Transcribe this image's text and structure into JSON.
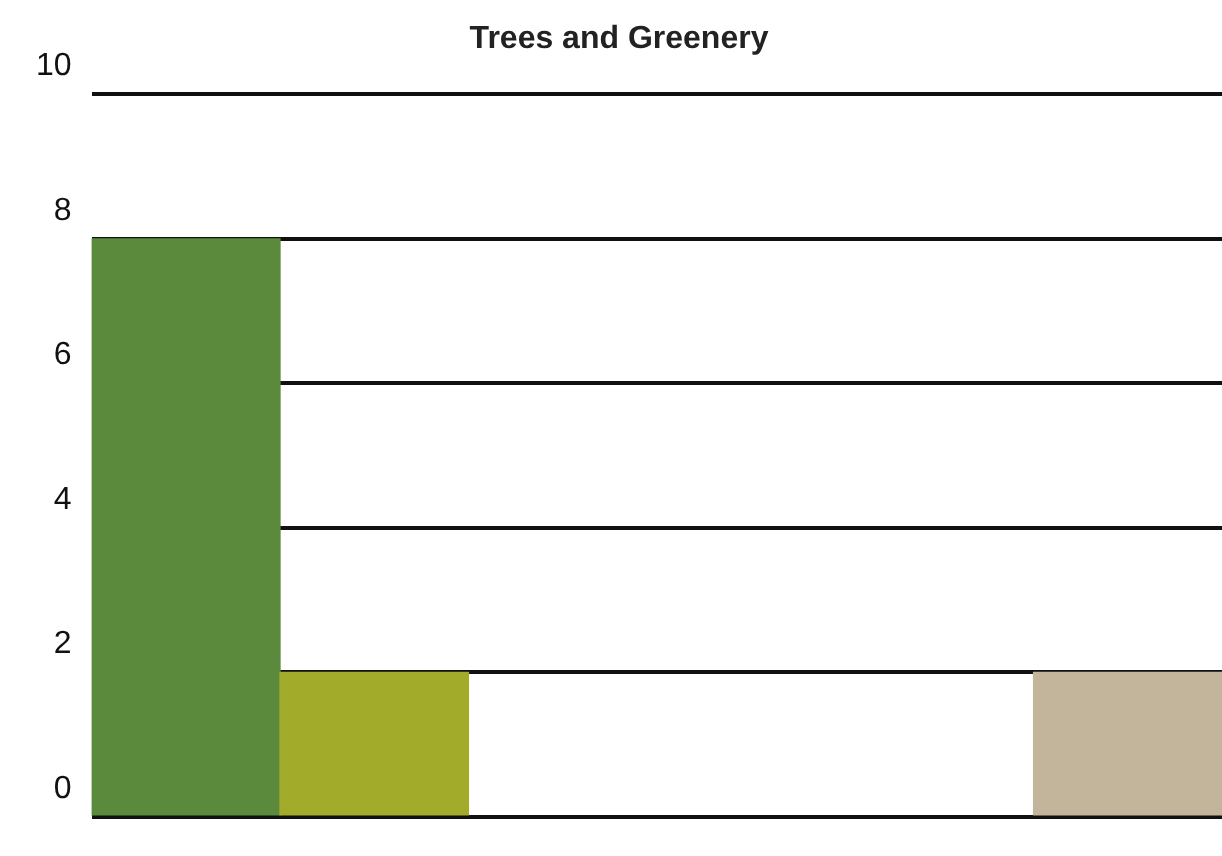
{
  "chart_data": {
    "type": "bar",
    "title": "Trees and Greenery",
    "categories": [
      null,
      null,
      null,
      null,
      null,
      null
    ],
    "values": [
      8,
      2,
      null,
      null,
      null,
      2
    ],
    "colors": [
      "#5b8a3c",
      "#a3ac2a",
      "#8f9a4a",
      "#8f9a4a",
      "#8f9a4a",
      "#c2b59b"
    ],
    "ylim": [
      0,
      10
    ],
    "yticks": [
      0,
      2,
      4,
      6,
      8,
      10
    ],
    "grid": "y",
    "tick_labels": "y",
    "legend": false
  }
}
